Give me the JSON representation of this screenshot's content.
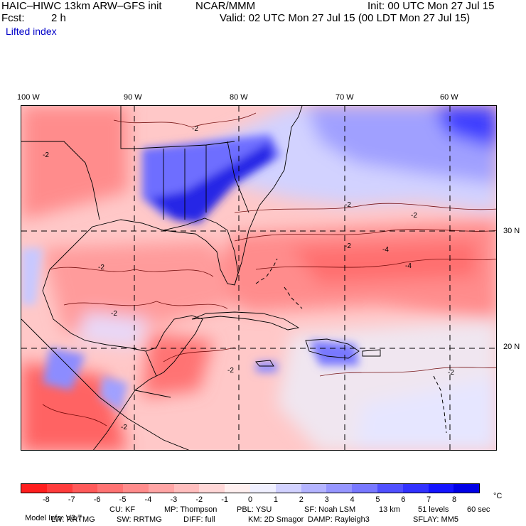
{
  "header": {
    "model": "HAIC–HIWC 13km ARW–GFS init",
    "org": "NCAR/MMM",
    "init": "Init: 00 UTC Mon 27 Jul 15",
    "fcst_label": "Fcst:",
    "fcst_value": "2 h",
    "valid": "Valid: 02 UTC Mon 27 Jul 15 (00 LDT Mon 27 Jul 15)",
    "field": "Lifted index"
  },
  "map": {
    "lon_labels": [
      "100 W",
      "90 W",
      "80 W",
      "70 W",
      "60 W"
    ],
    "lat_labels": [
      "30 N",
      "20 N"
    ],
    "contour_labels": [
      "-2",
      "-2",
      "-2",
      "-2",
      "-2",
      "-2",
      "-4",
      "-4",
      "-2",
      "-2",
      "-2",
      "-2"
    ]
  },
  "colorbar": {
    "unit": "°C",
    "ticks": [
      "-8",
      "-7",
      "-6",
      "-5",
      "-4",
      "-3",
      "-2",
      "-1",
      "0",
      "1",
      "2",
      "3",
      "4",
      "5",
      "6",
      "7",
      "8"
    ],
    "colors": [
      "#ff1e1e",
      "#ff3c3c",
      "#ff5a5a",
      "#ff7373",
      "#ff8c8c",
      "#ffa5a5",
      "#ffbebe",
      "#ffd7d7",
      "#fff0f0",
      "#f0f0ff",
      "#d2d2ff",
      "#b4b4ff",
      "#9696ff",
      "#7878ff",
      "#5050ff",
      "#3232ff",
      "#1414ff",
      "#0000e6"
    ]
  },
  "footer": {
    "line1": [
      "Model Info: V3.7",
      "CU: KF",
      "MP: Thompson",
      "PBL: YSU",
      "SF: Noah LSM",
      "13 km",
      "51 levels",
      "60 sec"
    ],
    "line2": [
      "LW: RRTMG",
      "SW: RRTMG",
      "DIFF: full",
      "KM: 2D Smagor",
      "DAMP: Rayleigh3",
      "SFLAY: MM5"
    ]
  }
}
